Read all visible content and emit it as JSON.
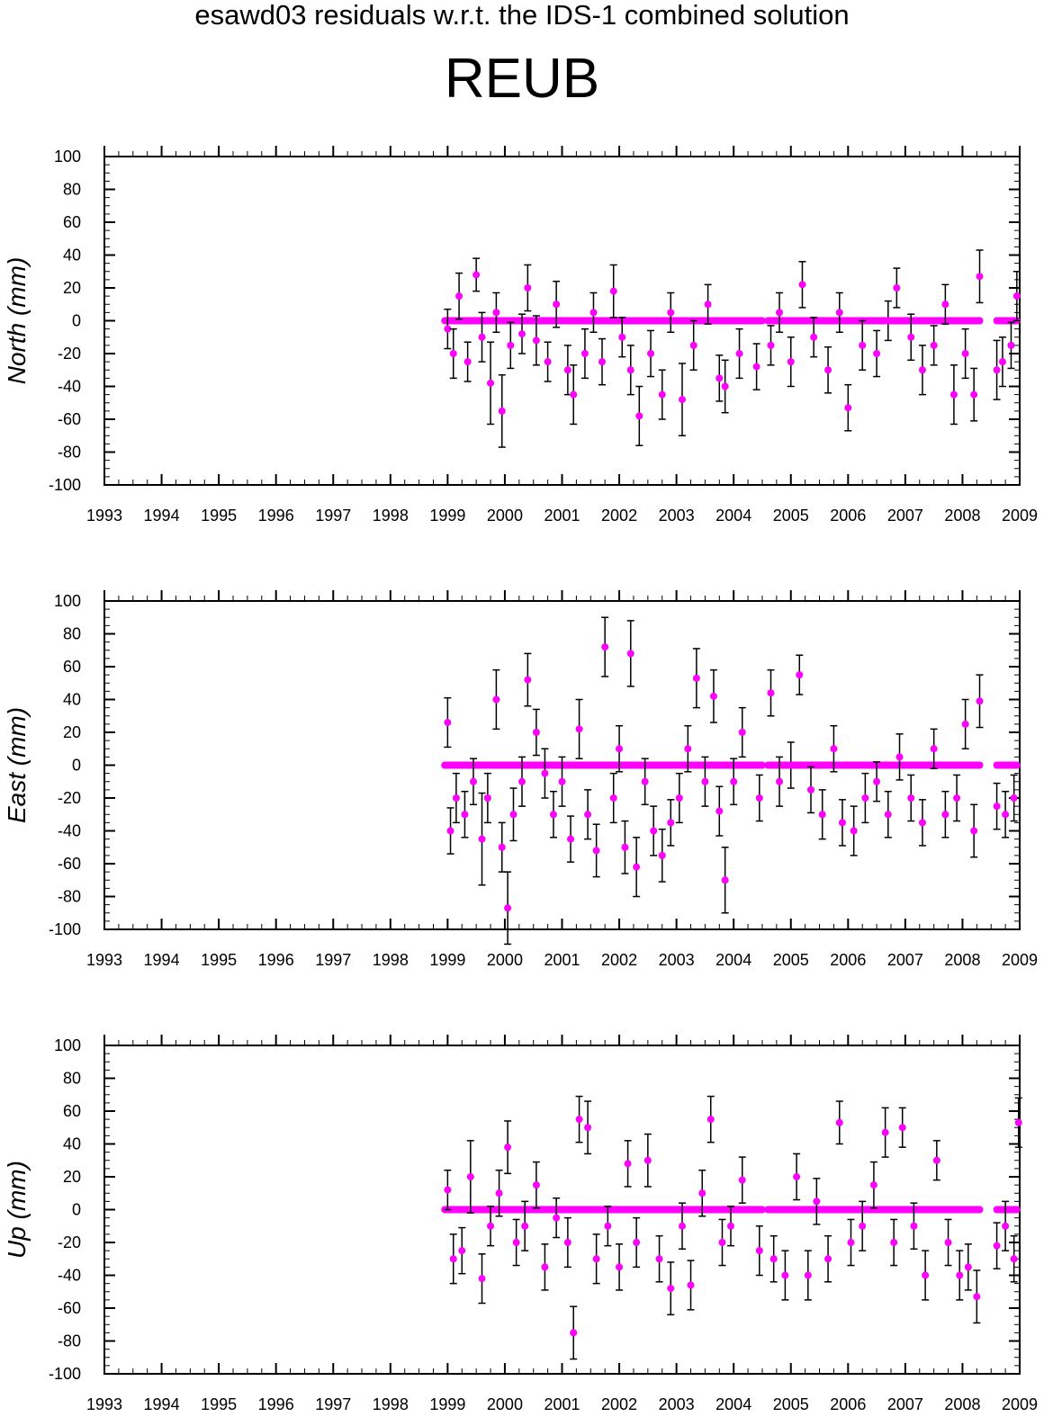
{
  "figure": {
    "title": "esawd03 residuals w.r.t. the IDS-1 combined solution",
    "station": "REUB"
  },
  "colors": {
    "marker": "#ff00ff",
    "error_bar": "#000000",
    "axes": "#000000",
    "background": "#ffffff"
  },
  "chart_data": [
    {
      "type": "scatter",
      "component": "North",
      "ylabel": "North (mm)",
      "xlim": [
        1993,
        2009
      ],
      "ylim": [
        -100,
        100
      ],
      "xticks": [
        "1993",
        "1994",
        "1995",
        "1996",
        "1997",
        "1998",
        "1999",
        "2000",
        "2001",
        "2002",
        "2003",
        "2004",
        "2005",
        "2006",
        "2007",
        "2008",
        "2009"
      ],
      "yticks": [
        "100",
        "80",
        "60",
        "40",
        "20",
        "0",
        "-20",
        "-40",
        "-60",
        "-80",
        "-100"
      ],
      "grid": false,
      "series": [
        {
          "x": [
            1999.0,
            1999.1,
            1999.2,
            1999.35,
            1999.5,
            1999.6,
            1999.75,
            1999.85,
            1999.95,
            2000.1,
            2000.3,
            2000.4,
            2000.55,
            2000.75,
            2000.9,
            2001.1,
            2001.2,
            2001.4,
            2001.55,
            2001.7,
            2001.9,
            2002.05,
            2002.2,
            2002.35,
            2002.55,
            2002.75,
            2002.9,
            2003.1,
            2003.3,
            2003.55,
            2003.75,
            2003.85,
            2004.1,
            2004.4,
            2004.65,
            2004.8,
            2005.0,
            2005.2,
            2005.4,
            2005.65,
            2005.85,
            2006.0,
            2006.25,
            2006.5,
            2006.7,
            2006.85,
            2007.1,
            2007.3,
            2007.5,
            2007.7,
            2007.85,
            2008.05,
            2008.2,
            2008.3,
            2008.6,
            2008.7,
            2008.85,
            2008.95
          ],
          "y": [
            -5,
            -20,
            15,
            -25,
            28,
            -10,
            -38,
            5,
            -55,
            -15,
            -8,
            20,
            -12,
            -25,
            10,
            -30,
            -45,
            -20,
            5,
            -25,
            18,
            -10,
            -30,
            -58,
            -20,
            -45,
            5,
            -48,
            -15,
            10,
            -35,
            -40,
            -20,
            -28,
            -15,
            5,
            -25,
            22,
            -10,
            -30,
            5,
            -53,
            -15,
            -20,
            0,
            20,
            -10,
            -30,
            -15,
            10,
            -45,
            -20,
            -45,
            27,
            -30,
            -25,
            -15,
            15
          ],
          "err": [
            12,
            15,
            14,
            12,
            10,
            15,
            25,
            12,
            22,
            14,
            12,
            14,
            15,
            12,
            14,
            15,
            18,
            15,
            12,
            14,
            16,
            12,
            15,
            18,
            14,
            15,
            12,
            22,
            15,
            12,
            14,
            16,
            15,
            14,
            12,
            12,
            15,
            14,
            12,
            14,
            12,
            14,
            15,
            14,
            12,
            12,
            14,
            15,
            12,
            12,
            18,
            15,
            16,
            16,
            18,
            15,
            14,
            15
          ],
          "x_fill": [
            1999.0,
            1999.1,
            1999.2,
            1999.35,
            1999.5,
            1999.6,
            1999.75,
            1999.85,
            1999.95,
            2000.1,
            2000.3,
            2000.4,
            2000.55,
            2000.75,
            2000.9,
            2001.1,
            2001.2,
            2001.4,
            2001.55,
            2001.7,
            2001.9,
            2002.05,
            2002.2,
            2002.35,
            2002.55,
            2002.75,
            2002.9,
            2003.1,
            2003.3,
            2003.55,
            2003.75,
            2003.85,
            2004.1,
            2004.4,
            2004.65,
            2004.8,
            2005.0,
            2005.2,
            2005.4,
            2005.65,
            2005.85,
            2006.0,
            2006.25,
            2006.5,
            2006.7,
            2006.85,
            2007.1,
            2007.3,
            2007.5,
            2007.7,
            2007.85,
            2008.05,
            2008.2,
            2008.3,
            2008.6,
            2008.7,
            2008.85,
            2008.95
          ]
        }
      ],
      "zero_segments": [
        [
          1998.95,
          2004.5
        ],
        [
          2004.6,
          2008.3
        ],
        [
          2008.6,
          2008.95
        ]
      ]
    },
    {
      "type": "scatter",
      "component": "East",
      "ylabel": "East (mm)",
      "xlim": [
        1993,
        2009
      ],
      "ylim": [
        -100,
        100
      ],
      "xticks": [
        "1993",
        "1994",
        "1995",
        "1996",
        "1997",
        "1998",
        "1999",
        "2000",
        "2001",
        "2002",
        "2003",
        "2004",
        "2005",
        "2006",
        "2007",
        "2008",
        "2009"
      ],
      "yticks": [
        "100",
        "80",
        "60",
        "40",
        "20",
        "0",
        "-20",
        "-40",
        "-60",
        "-80",
        "-100"
      ],
      "grid": false,
      "series": [
        {
          "x": [
            1999.0,
            1999.05,
            1999.15,
            1999.3,
            1999.45,
            1999.6,
            1999.7,
            1999.85,
            1999.95,
            2000.05,
            2000.15,
            2000.3,
            2000.4,
            2000.55,
            2000.7,
            2000.85,
            2001.0,
            2001.15,
            2001.3,
            2001.45,
            2001.6,
            2001.75,
            2001.9,
            2002.0,
            2002.1,
            2002.2,
            2002.3,
            2002.45,
            2002.6,
            2002.75,
            2002.9,
            2003.05,
            2003.2,
            2003.35,
            2003.5,
            2003.65,
            2003.75,
            2003.85,
            2004.0,
            2004.15,
            2004.45,
            2004.65,
            2004.8,
            2005.0,
            2005.15,
            2005.35,
            2005.55,
            2005.75,
            2005.9,
            2006.1,
            2006.3,
            2006.5,
            2006.7,
            2006.9,
            2007.1,
            2007.3,
            2007.5,
            2007.7,
            2007.9,
            2008.05,
            2008.2,
            2008.3,
            2008.6,
            2008.75,
            2008.9
          ],
          "y": [
            26,
            -40,
            -20,
            -30,
            -10,
            -45,
            -20,
            40,
            -50,
            -87,
            -30,
            -10,
            52,
            20,
            -5,
            -30,
            -10,
            -45,
            22,
            -30,
            -52,
            72,
            -20,
            10,
            -50,
            68,
            -62,
            -10,
            -40,
            -55,
            -35,
            -20,
            10,
            53,
            -10,
            42,
            -28,
            -70,
            -10,
            20,
            -20,
            44,
            -10,
            0,
            55,
            -15,
            -30,
            10,
            -35,
            -40,
            -20,
            -10,
            -30,
            5,
            -20,
            -35,
            10,
            -30,
            -20,
            25,
            -40,
            39,
            -25,
            -30,
            -20
          ],
          "err": [
            15,
            14,
            15,
            14,
            14,
            28,
            15,
            18,
            15,
            22,
            16,
            15,
            16,
            14,
            15,
            14,
            15,
            14,
            18,
            15,
            16,
            18,
            15,
            14,
            16,
            20,
            18,
            14,
            15,
            16,
            14,
            15,
            14,
            18,
            15,
            16,
            15,
            20,
            14,
            15,
            14,
            14,
            15,
            14,
            12,
            14,
            15,
            14,
            14,
            15,
            15,
            12,
            14,
            14,
            14,
            14,
            12,
            14,
            14,
            15,
            16,
            16,
            14,
            14,
            14
          ]
        }
      ],
      "zero_segments": [
        [
          1998.95,
          2004.5
        ],
        [
          2004.6,
          2008.3
        ],
        [
          2008.6,
          2008.95
        ]
      ]
    },
    {
      "type": "scatter",
      "component": "Up",
      "ylabel": "Up (mm)",
      "xlim": [
        1993,
        2009
      ],
      "ylim": [
        -100,
        100
      ],
      "xticks": [
        "1993",
        "1994",
        "1995",
        "1996",
        "1997",
        "1998",
        "1999",
        "2000",
        "2001",
        "2002",
        "2003",
        "2004",
        "2005",
        "2006",
        "2007",
        "2008",
        "2009"
      ],
      "yticks": [
        "100",
        "80",
        "60",
        "40",
        "20",
        "0",
        "-20",
        "-40",
        "-60",
        "-80",
        "-100"
      ],
      "grid": false,
      "series": [
        {
          "x": [
            1999.0,
            1999.1,
            1999.25,
            1999.4,
            1999.6,
            1999.75,
            1999.9,
            2000.05,
            2000.2,
            2000.35,
            2000.55,
            2000.7,
            2000.9,
            2001.1,
            2001.2,
            2001.3,
            2001.45,
            2001.6,
            2001.8,
            2002.0,
            2002.15,
            2002.3,
            2002.5,
            2002.7,
            2002.9,
            2003.1,
            2003.25,
            2003.45,
            2003.6,
            2003.8,
            2003.95,
            2004.15,
            2004.45,
            2004.7,
            2004.9,
            2005.1,
            2005.3,
            2005.45,
            2005.65,
            2005.85,
            2006.05,
            2006.25,
            2006.45,
            2006.65,
            2006.8,
            2006.95,
            2007.15,
            2007.35,
            2007.55,
            2007.75,
            2007.95,
            2008.1,
            2008.25,
            2008.6,
            2008.75,
            2008.9,
            2008.98
          ],
          "y": [
            12,
            -30,
            -25,
            20,
            -42,
            -10,
            10,
            38,
            -20,
            -10,
            15,
            -35,
            -5,
            -20,
            -75,
            55,
            50,
            -30,
            -10,
            -35,
            28,
            -20,
            30,
            -30,
            -48,
            -10,
            -46,
            10,
            55,
            -20,
            -10,
            18,
            -25,
            -30,
            -40,
            20,
            -40,
            5,
            -30,
            53,
            -20,
            -10,
            15,
            47,
            -20,
            50,
            -10,
            -40,
            30,
            -20,
            -40,
            -35,
            -53,
            -22,
            -10,
            -30,
            53
          ],
          "err": [
            12,
            15,
            14,
            22,
            15,
            12,
            14,
            16,
            14,
            15,
            14,
            14,
            12,
            15,
            16,
            14,
            16,
            15,
            12,
            14,
            14,
            15,
            16,
            14,
            16,
            14,
            15,
            14,
            14,
            14,
            12,
            14,
            15,
            14,
            15,
            14,
            15,
            14,
            14,
            13,
            14,
            15,
            14,
            15,
            14,
            12,
            14,
            15,
            12,
            14,
            15,
            14,
            16,
            14,
            15,
            14,
            15
          ]
        }
      ],
      "zero_segments": [
        [
          1998.95,
          2004.5
        ],
        [
          2004.6,
          2008.3
        ],
        [
          2008.6,
          2008.95
        ]
      ]
    }
  ]
}
